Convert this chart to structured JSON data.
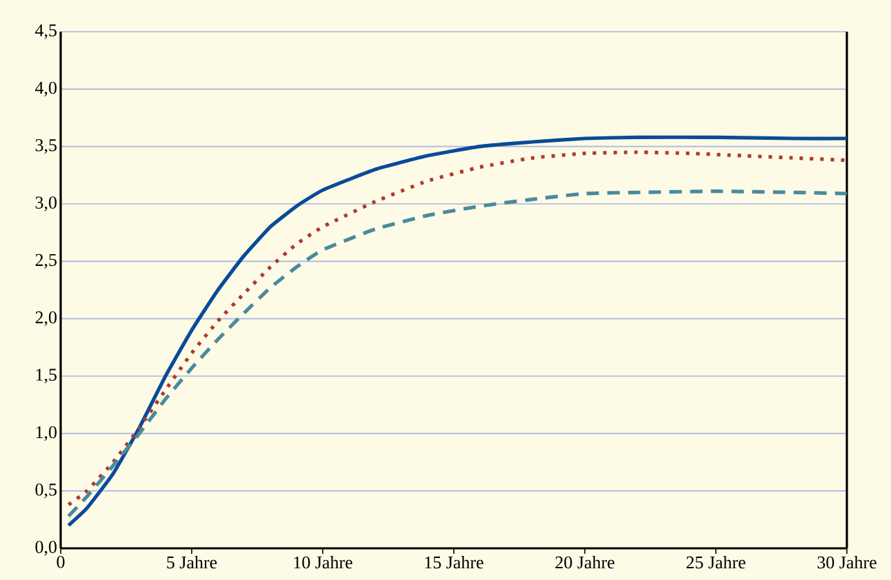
{
  "chart_data": {
    "type": "line",
    "xlim": [
      0,
      30
    ],
    "ylim": [
      0,
      4.5
    ],
    "xticks": [
      0,
      {
        "value": 5,
        "label": "5 Jahre"
      },
      {
        "value": 10,
        "label": "10 Jahre"
      },
      {
        "value": 15,
        "label": "15 Jahre"
      },
      {
        "value": 20,
        "label": "20 Jahre"
      },
      {
        "value": 25,
        "label": "25 Jahre"
      },
      {
        "value": 30,
        "label": "30 Jahre"
      }
    ],
    "yticks": [
      {
        "value": 0,
        "label": "0,0"
      },
      {
        "value": 0.5,
        "label": "0,5"
      },
      {
        "value": 1,
        "label": "1,0"
      },
      {
        "value": 1.5,
        "label": "1,5"
      },
      {
        "value": 2,
        "label": "2,0"
      },
      {
        "value": 2.5,
        "label": "2,5"
      },
      {
        "value": 3,
        "label": "3,0"
      },
      {
        "value": 3.5,
        "label": "3,5"
      },
      {
        "value": 4,
        "label": "4,0"
      },
      {
        "value": 4.5,
        "label": "4,5"
      }
    ],
    "grid": "y",
    "series": [
      {
        "color": "#0a4a9a",
        "line_style": "solid",
        "x": [
          0.3,
          1,
          2,
          3,
          4,
          5,
          6,
          7,
          8,
          9,
          10,
          12,
          14,
          16,
          18,
          20,
          22,
          25,
          28,
          30
        ],
        "values": [
          0.2,
          0.35,
          0.65,
          1.05,
          1.5,
          1.9,
          2.25,
          2.55,
          2.8,
          2.98,
          3.12,
          3.3,
          3.42,
          3.5,
          3.54,
          3.57,
          3.58,
          3.58,
          3.57,
          3.57
        ]
      },
      {
        "color": "#b03a2e",
        "line_style": "dotted",
        "x": [
          0.3,
          1,
          2,
          3,
          4,
          5,
          6,
          7,
          8,
          9,
          10,
          12,
          14,
          16,
          18,
          20,
          22,
          24,
          26,
          28,
          30
        ],
        "values": [
          0.38,
          0.5,
          0.75,
          1.05,
          1.38,
          1.7,
          1.98,
          2.22,
          2.45,
          2.65,
          2.8,
          3.02,
          3.2,
          3.32,
          3.4,
          3.44,
          3.45,
          3.44,
          3.42,
          3.4,
          3.38
        ]
      },
      {
        "color": "#4a8a9c",
        "line_style": "dashed",
        "x": [
          0.3,
          1,
          2,
          3,
          4,
          5,
          6,
          7,
          8,
          9,
          10,
          12,
          14,
          16,
          18,
          20,
          22,
          25,
          28,
          30
        ],
        "values": [
          0.28,
          0.45,
          0.72,
          1.0,
          1.3,
          1.57,
          1.82,
          2.05,
          2.27,
          2.45,
          2.6,
          2.78,
          2.9,
          2.98,
          3.04,
          3.09,
          3.1,
          3.11,
          3.1,
          3.09
        ]
      }
    ]
  }
}
